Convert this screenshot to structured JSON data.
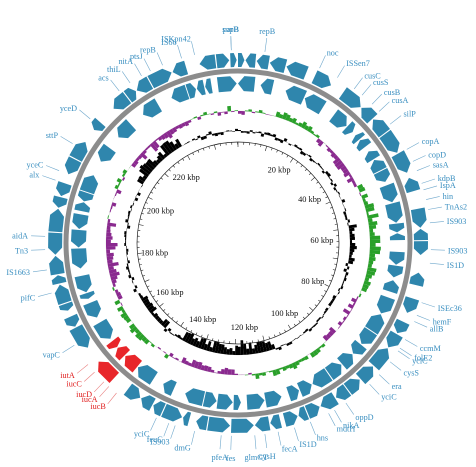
{
  "colors": {
    "gene_blue": "#2f86ad",
    "label_blue": "#3a8fc0",
    "label_red": "#e02020",
    "highlight_red": "#e8262a",
    "backbone_grey": "#8c8c8c",
    "gc_skew_positive": "#2aa02a",
    "gc_skew_negative": "#8a2a8f",
    "gc_content": "#000000",
    "leader_line": "#6fa8cc",
    "leader_line_red": "#e98080"
  },
  "kbp_scale": {
    "ticks": [
      "20 kbp",
      "40 kbp",
      "60 kbp",
      "80 kbp",
      "100 kbp",
      "120 kbp",
      "140 kbp",
      "160 kbp",
      "180 kbp",
      "200 kbp",
      "220 kbp"
    ]
  },
  "gene_labels": [
    {
      "text": "sopB",
      "deg": 358,
      "color": "blue"
    },
    {
      "text": "ISKpn42",
      "deg": 347,
      "color": "blue"
    },
    {
      "text": "IS66",
      "deg": 343,
      "color": "blue"
    },
    {
      "text": "repB",
      "deg": 8,
      "color": "blue"
    },
    {
      "text": "parB",
      "deg": 358,
      "color": "blue"
    },
    {
      "text": "noc",
      "deg": 25,
      "color": "blue"
    },
    {
      "text": "ISSen7",
      "deg": 31,
      "color": "blue"
    },
    {
      "text": "cusC",
      "deg": 37,
      "color": "blue"
    },
    {
      "text": "cusS",
      "deg": 40,
      "color": "blue"
    },
    {
      "text": "cusB",
      "deg": 44,
      "color": "blue"
    },
    {
      "text": "cusA",
      "deg": 47,
      "color": "blue"
    },
    {
      "text": "silP",
      "deg": 52,
      "color": "blue"
    },
    {
      "text": "copA",
      "deg": 61,
      "color": "blue"
    },
    {
      "text": "copD",
      "deg": 65,
      "color": "blue"
    },
    {
      "text": "sasA",
      "deg": 68,
      "color": "blue"
    },
    {
      "text": "kdpB",
      "deg": 72,
      "color": "blue"
    },
    {
      "text": "IspA",
      "deg": 74,
      "color": "blue"
    },
    {
      "text": "hin",
      "deg": 77,
      "color": "blue"
    },
    {
      "text": "TnAs2",
      "deg": 80,
      "color": "blue"
    },
    {
      "text": "IS903",
      "deg": 84,
      "color": "blue"
    },
    {
      "text": "IS903",
      "deg": 92,
      "color": "blue"
    },
    {
      "text": "IS1D",
      "deg": 96,
      "color": "blue"
    },
    {
      "text": "ISEc36",
      "deg": 108,
      "color": "blue"
    },
    {
      "text": "hemF",
      "deg": 112,
      "color": "blue"
    },
    {
      "text": "allB",
      "deg": 114,
      "color": "blue"
    },
    {
      "text": "ccmM",
      "deg": 120,
      "color": "blue"
    },
    {
      "text": "folE2",
      "deg": 123,
      "color": "blue"
    },
    {
      "text": "yciC",
      "deg": 124,
      "color": "blue"
    },
    {
      "text": "cysS",
      "deg": 128,
      "color": "blue"
    },
    {
      "text": "era",
      "deg": 133,
      "color": "blue"
    },
    {
      "text": "yciC",
      "deg": 137,
      "color": "blue"
    },
    {
      "text": "oppD",
      "deg": 146,
      "color": "blue"
    },
    {
      "text": "nikA",
      "deg": 150,
      "color": "blue"
    },
    {
      "text": "mdtH",
      "deg": 152,
      "color": "blue"
    },
    {
      "text": "hns",
      "deg": 158,
      "color": "blue"
    },
    {
      "text": "IS1D",
      "deg": 163,
      "color": "blue"
    },
    {
      "text": "fecA",
      "deg": 168,
      "color": "blue"
    },
    {
      "text": "cysH",
      "deg": 172,
      "color": "blue"
    },
    {
      "text": "glmGT",
      "deg": 175,
      "color": "blue"
    },
    {
      "text": "fes",
      "deg": 182,
      "color": "blue"
    },
    {
      "text": "pfeA",
      "deg": 185,
      "color": "blue"
    },
    {
      "text": "dmG",
      "deg": 193,
      "color": "blue"
    },
    {
      "text": "IS903",
      "deg": 199,
      "color": "blue"
    },
    {
      "text": "feuC",
      "deg": 201,
      "color": "blue"
    },
    {
      "text": "yciC",
      "deg": 205,
      "color": "blue"
    },
    {
      "text": "iucB",
      "deg": 219,
      "color": "red"
    },
    {
      "text": "iucA",
      "deg": 222,
      "color": "red"
    },
    {
      "text": "iucD",
      "deg": 224,
      "color": "red"
    },
    {
      "text": "iucC",
      "deg": 228,
      "color": "red"
    },
    {
      "text": "iutA",
      "deg": 231,
      "color": "red"
    },
    {
      "text": "vapC",
      "deg": 238,
      "color": "blue"
    },
    {
      "text": "pifC",
      "deg": 255,
      "color": "blue"
    },
    {
      "text": "IS1663",
      "deg": 262,
      "color": "blue"
    },
    {
      "text": "Tn3",
      "deg": 268,
      "color": "blue"
    },
    {
      "text": "aidA",
      "deg": 272,
      "color": "blue"
    },
    {
      "text": "alx",
      "deg": 289,
      "color": "blue"
    },
    {
      "text": "yceC",
      "deg": 292,
      "color": "blue"
    },
    {
      "text": "sttP",
      "deg": 301,
      "color": "blue"
    },
    {
      "text": "yceD",
      "deg": 310,
      "color": "blue"
    },
    {
      "text": "acs",
      "deg": 322,
      "color": "blue"
    },
    {
      "text": "thiL",
      "deg": 326,
      "color": "blue"
    },
    {
      "text": "nitA",
      "deg": 330,
      "color": "blue"
    },
    {
      "text": "ptsJ",
      "deg": 333,
      "color": "blue"
    },
    {
      "text": "repB",
      "deg": 337,
      "color": "blue"
    }
  ]
}
